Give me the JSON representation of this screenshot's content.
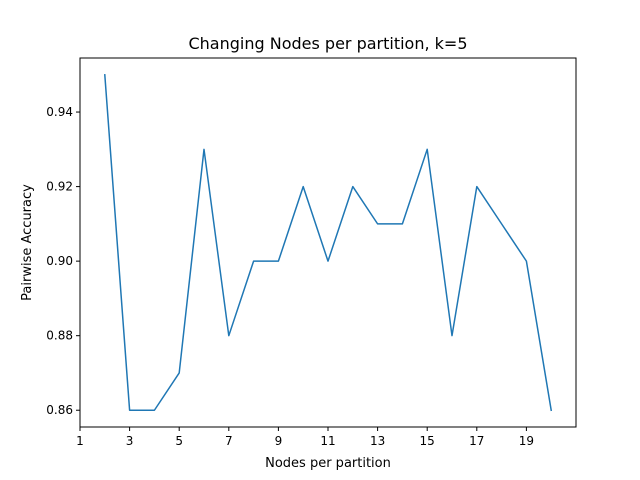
{
  "chart_data": {
    "type": "line",
    "title": "Changing Nodes per partition, k=5",
    "xlabel": "Nodes per partition",
    "ylabel": "Pairwise Accuracy",
    "xlim": [
      1,
      21
    ],
    "ylim": [
      0.8555,
      0.9545
    ],
    "xticks": [
      1,
      3,
      5,
      7,
      9,
      11,
      13,
      15,
      17,
      19
    ],
    "xtick_labels": [
      "1",
      "3",
      "5",
      "7",
      "9",
      "11",
      "13",
      "15",
      "17",
      "19"
    ],
    "yticks": [
      0.86,
      0.88,
      0.9,
      0.92,
      0.94
    ],
    "ytick_labels": [
      "0.86",
      "0.88",
      "0.90",
      "0.92",
      "0.94"
    ],
    "grid": false,
    "series": [
      {
        "color": "#1f77b4",
        "x": [
          2,
          3,
          4,
          5,
          6,
          7,
          8,
          9,
          10,
          11,
          12,
          13,
          14,
          15,
          16,
          17,
          18,
          19,
          20
        ],
        "y": [
          0.95,
          0.86,
          0.86,
          0.87,
          0.93,
          0.88,
          0.9,
          0.9,
          0.92,
          0.9,
          0.92,
          0.91,
          0.91,
          0.93,
          0.88,
          0.92,
          0.91,
          0.9,
          0.86
        ]
      }
    ]
  }
}
